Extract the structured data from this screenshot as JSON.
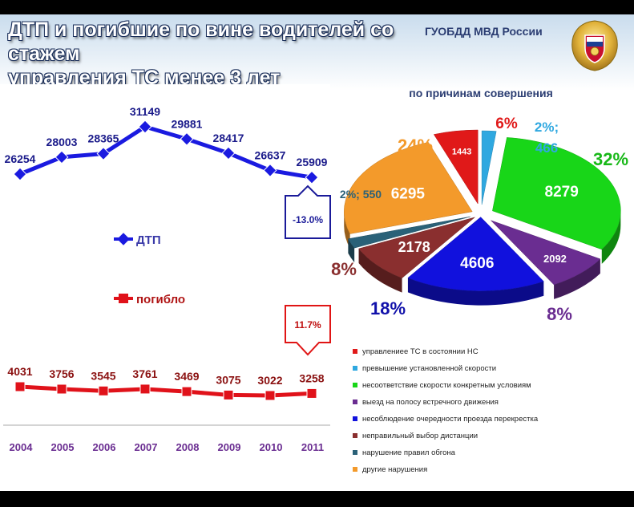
{
  "slide": {
    "title_line1": "ДТП и погибшие по вине водителей со стажем",
    "title_line2": "управления ТС менее 3 лет",
    "org": "ГУОБДД МВД России",
    "pie_title": "по причинам совершения"
  },
  "chart_data": [
    {
      "type": "line",
      "categories": [
        "2004",
        "2005",
        "2006",
        "2007",
        "2008",
        "2009",
        "2010",
        "2011"
      ],
      "series": [
        {
          "name": "ДТП",
          "values": [
            26254,
            28003,
            28365,
            31149,
            29881,
            28417,
            26637,
            25909
          ],
          "color": "#1a1ae0"
        },
        {
          "name": "погибло",
          "values": [
            4031,
            3756,
            3545,
            3761,
            3469,
            3075,
            3022,
            3258
          ],
          "color": "#e0121a"
        }
      ],
      "annotations": [
        {
          "series": "ДТП",
          "text": "-13.0%"
        },
        {
          "series": "погибло",
          "text": "11.7%"
        }
      ]
    },
    {
      "type": "pie",
      "title": "по причинам совершения",
      "slices": [
        {
          "label": "управлениее ТС в состоянии НС",
          "value": 1443,
          "pct": "6%",
          "color": "#e01919"
        },
        {
          "label": "превышение установленной скорости",
          "value": 466,
          "pct": "2%;",
          "color": "#2fa8e0"
        },
        {
          "label": "несоответствие скорости конкретным условиям",
          "value": 8279,
          "pct": "32%",
          "color": "#18d618"
        },
        {
          "label": "выезд на полосу встречного движения",
          "value": 2092,
          "pct": "8%",
          "color": "#6a2d91"
        },
        {
          "label": "несоблюдение очередности проезда перекрестка",
          "value": 4606,
          "pct": "18%",
          "color": "#1111dd"
        },
        {
          "label": "неправильный выбор дистанции",
          "value": 2178,
          "pct": "8%",
          "color": "#8a2f2f"
        },
        {
          "label": "нарушение правил обгона",
          "value": 550,
          "pct": "2%; 550",
          "color": "#2a6178"
        },
        {
          "label": "другие нарушения",
          "value": 6295,
          "pct": "24%",
          "color": "#f39a2b"
        }
      ]
    }
  ]
}
